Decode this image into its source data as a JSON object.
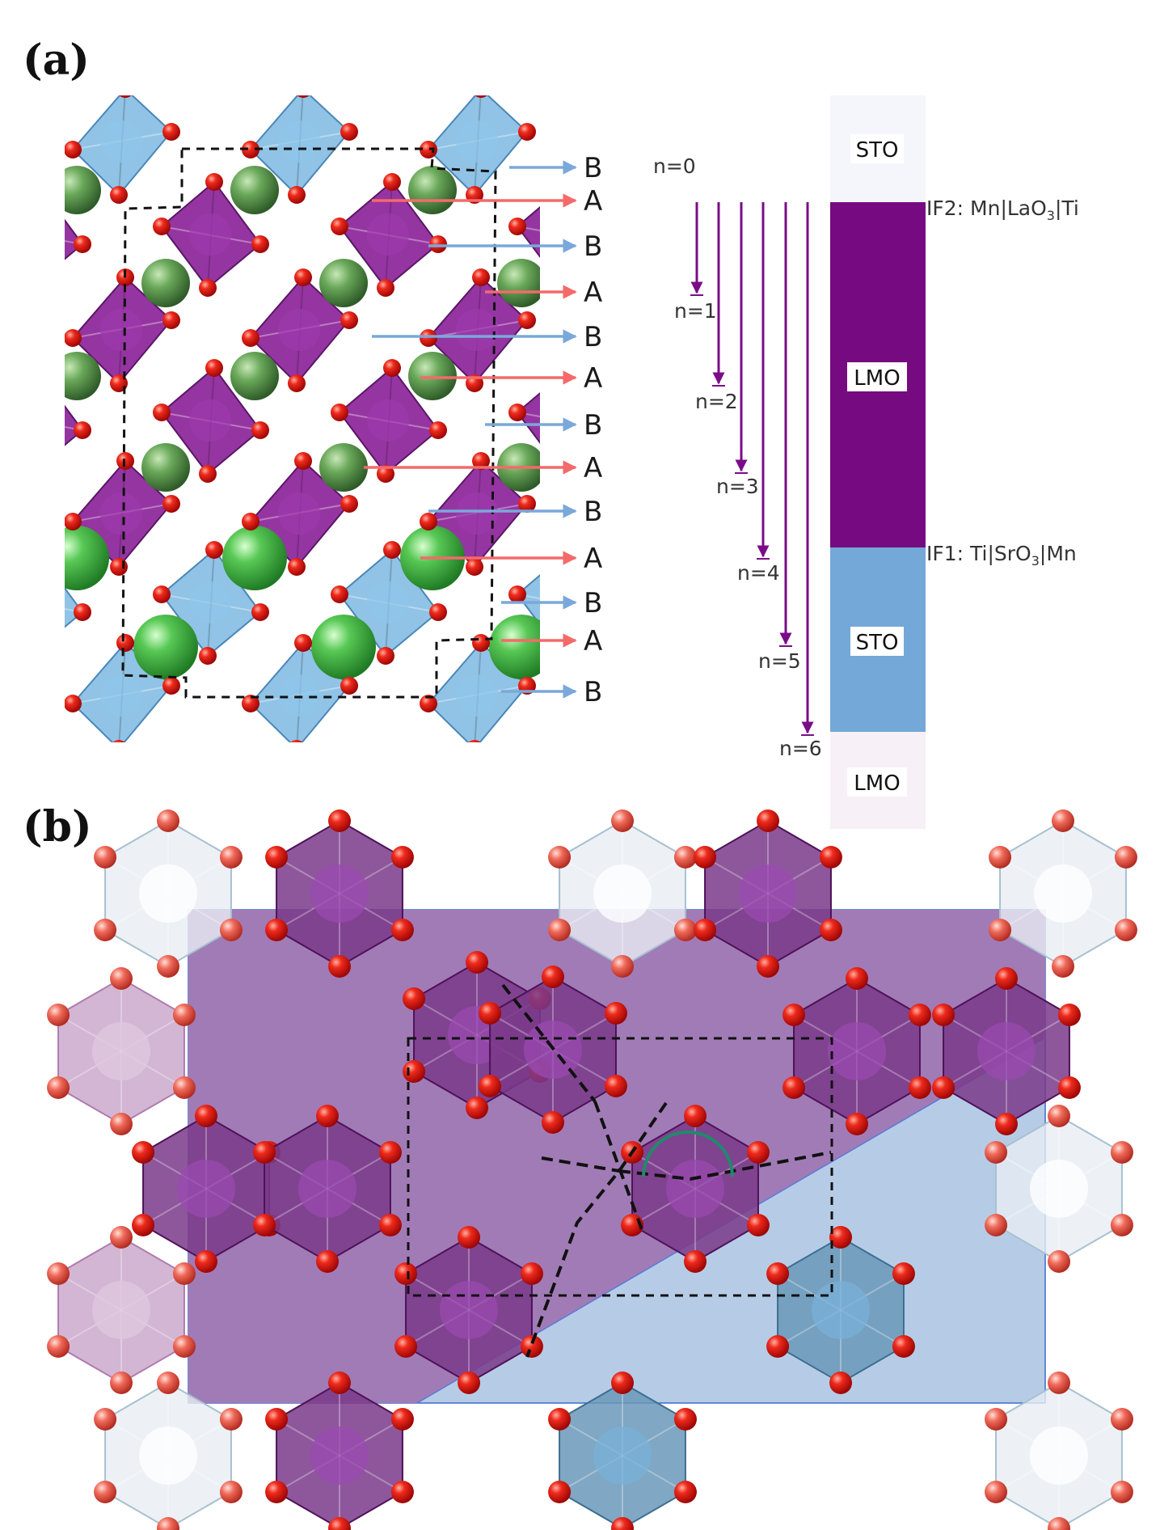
{
  "panels": {
    "a": {
      "label": "(a)"
    },
    "b": {
      "label": "(b)"
    }
  },
  "colors": {
    "sto": "#74a8d8",
    "sto_light": "#f4f6fb",
    "lmo": "#760a80",
    "lmo_light": "#f7f0f6",
    "oct_lmo": "#8f2a9c",
    "oct_sto": "#7cb8e0",
    "oxygen": "#e01010",
    "cation_a": "#4fc44f",
    "arrow_a": "#f46a6a",
    "arrow_b": "#7aa8da",
    "n_arrow": "#7a0c88",
    "angle_arc": "#1f8a6a"
  },
  "layer_labels": [
    "B",
    "A",
    "B",
    "A",
    "B",
    "A",
    "B",
    "A",
    "B",
    "A",
    "B",
    "A",
    "B"
  ],
  "n_labels": [
    "n=0",
    "n=1",
    "n=2",
    "n=3",
    "n=4",
    "n=5",
    "n=6"
  ],
  "stack": {
    "top_sto": "STO",
    "lmo": "LMO",
    "sto": "STO",
    "bottom_lmo": "LMO"
  },
  "interfaces": {
    "if2": {
      "prefix": "IF2: Mn|LaO",
      "sub": "3",
      "suffix": "|Ti"
    },
    "if1": {
      "prefix": "IF1: Ti|SrO",
      "sub": "3",
      "suffix": "|Mn"
    }
  }
}
